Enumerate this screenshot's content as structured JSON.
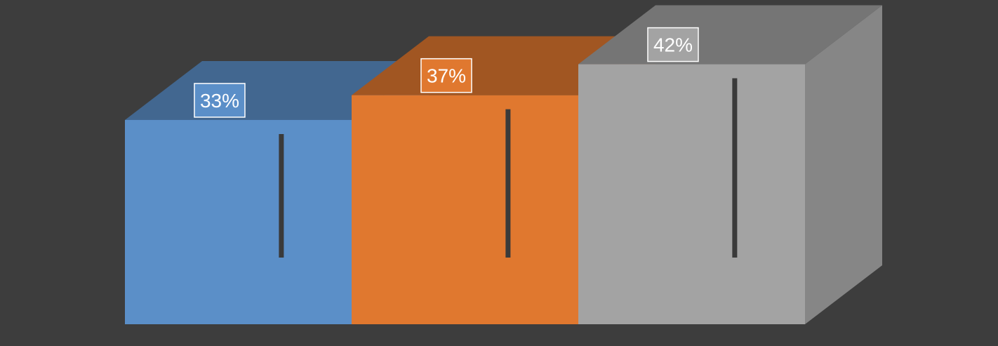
{
  "chart_data": {
    "type": "bar",
    "style": "3d-box",
    "categories": [
      "",
      "",
      ""
    ],
    "values": [
      33,
      37,
      42
    ],
    "data_labels": [
      "33%",
      "37%",
      "42%"
    ],
    "colors": [
      "#5b8fc8",
      "#e0782f",
      "#a3a3a3"
    ],
    "ylim": [
      0,
      45
    ],
    "grid": false,
    "legend": "none",
    "title": "",
    "xlabel": "",
    "ylabel": ""
  },
  "background": "#3d3d3d"
}
